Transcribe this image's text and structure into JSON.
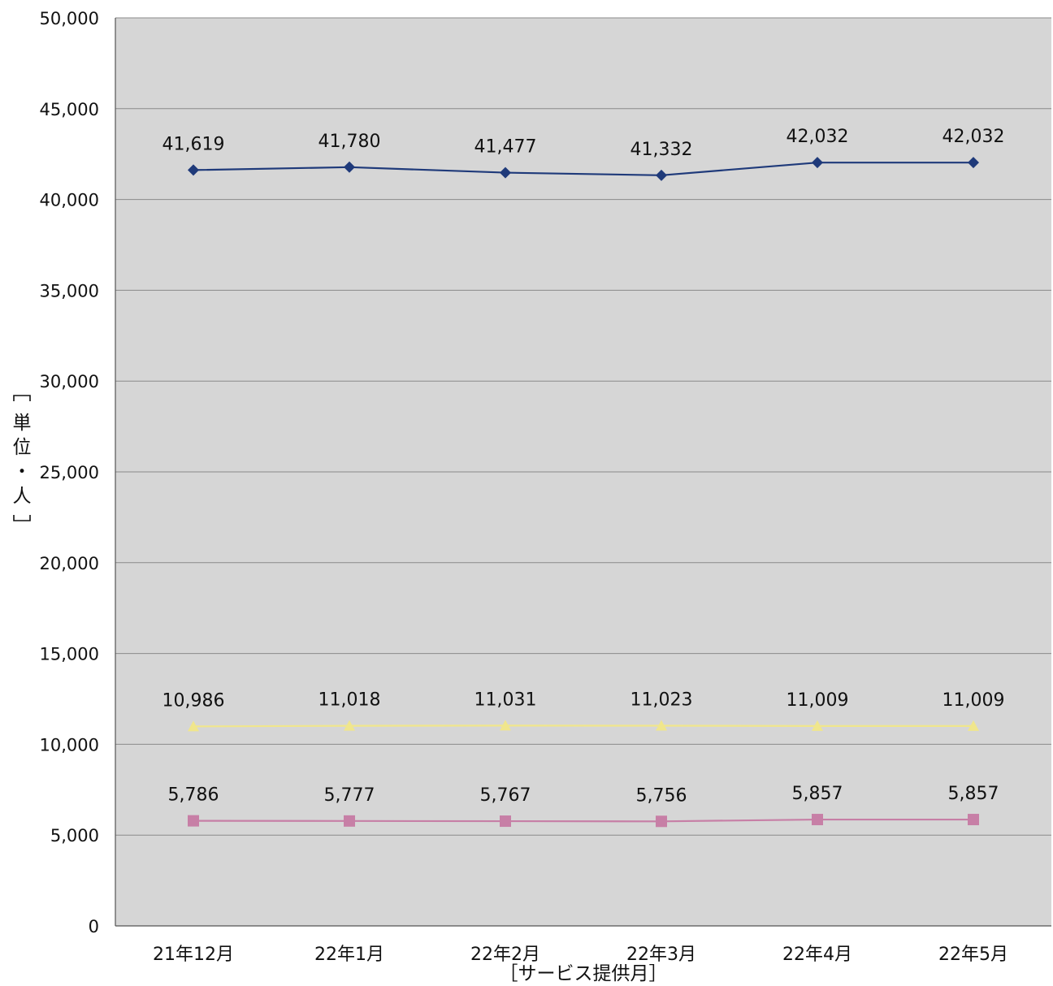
{
  "chart_data": {
    "type": "line",
    "categories": [
      "21年12月",
      "22年1月",
      "22年2月",
      "22年3月",
      "22年4月",
      "22年5月"
    ],
    "series": [
      {
        "values": [
          41619,
          41780,
          41477,
          41332,
          42032,
          42032
        ],
        "labels": [
          "41,619",
          "41,780",
          "41,477",
          "41,332",
          "42,032",
          "42,032"
        ],
        "color": "#1f3a7a",
        "marker": "diamond"
      },
      {
        "values": [
          10986,
          11018,
          11031,
          11023,
          11009,
          11009
        ],
        "labels": [
          "10,986",
          "11,018",
          "11,031",
          "11,023",
          "11,009",
          "11,009"
        ],
        "color": "#f0e68c",
        "marker": "triangle"
      },
      {
        "values": [
          5786,
          5777,
          5767,
          5756,
          5857,
          5857
        ],
        "labels": [
          "5,786",
          "5,777",
          "5,767",
          "5,756",
          "5,857",
          "5,857"
        ],
        "color": "#c77fa6",
        "marker": "square"
      }
    ],
    "ylim": [
      0,
      50000
    ],
    "yticks": [
      0,
      5000,
      10000,
      15000,
      20000,
      25000,
      30000,
      35000,
      40000,
      45000,
      50000
    ],
    "ytick_labels": [
      "0",
      "5,000",
      "10,000",
      "15,000",
      "20,000",
      "25,000",
      "30,000",
      "35,000",
      "40,000",
      "45,000",
      "50,000"
    ],
    "xlabel": "［サービス提供月］",
    "ylabel": "［単位・人］",
    "grid": true,
    "plot_background": "#d6d6d6"
  }
}
